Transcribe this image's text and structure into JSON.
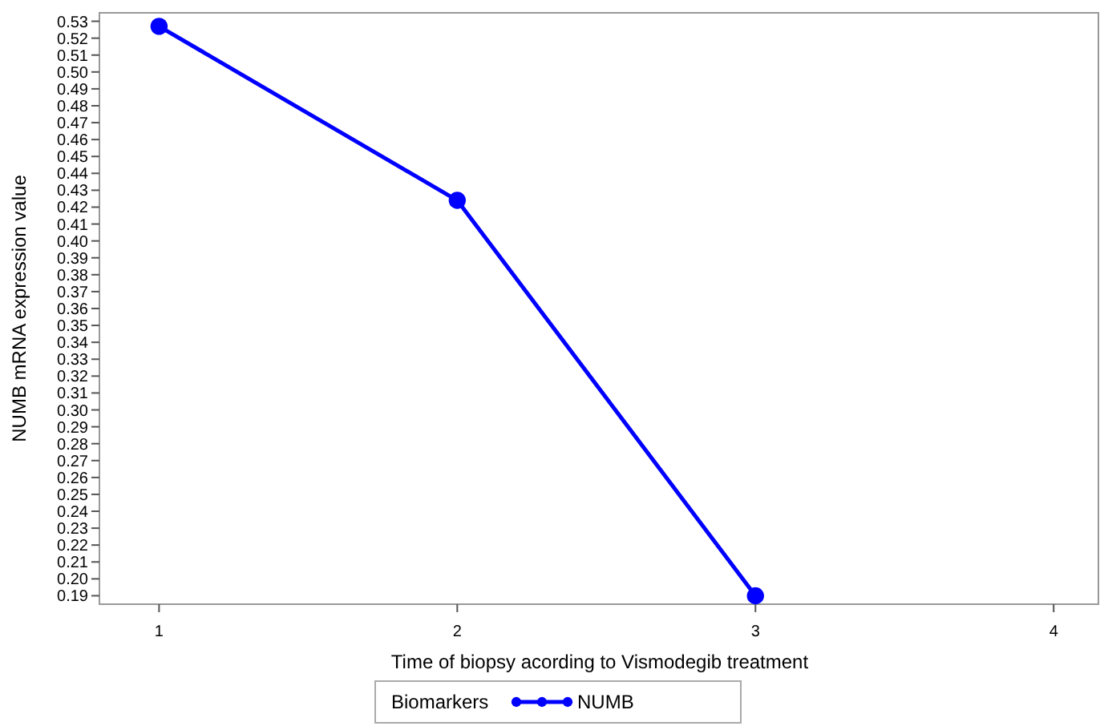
{
  "chart_data": {
    "type": "line",
    "xlabel": "Time of biopsy acording to Vismodegib treatment",
    "ylabel": "NUMB mRNA expression value",
    "legend_title": "Biomarkers",
    "x": [
      1,
      2,
      3
    ],
    "series": [
      {
        "name": "NUMB",
        "color": "#0000ff",
        "values": [
          0.527,
          0.424,
          0.19
        ]
      }
    ],
    "xlim": [
      0.8,
      4.15
    ],
    "xticks": [
      1,
      2,
      3,
      4
    ],
    "ylim": [
      0.185,
      0.535
    ],
    "yticks": [
      0.19,
      {
        "value": 0.2,
        "label": "0.20"
      },
      0.21,
      0.22,
      0.23,
      0.24,
      0.25,
      0.26,
      0.27,
      0.28,
      0.29,
      {
        "value": 0.3,
        "label": "0.30"
      },
      0.31,
      0.32,
      0.33,
      0.34,
      0.35,
      0.36,
      0.37,
      0.38,
      0.39,
      {
        "value": 0.4,
        "label": "0.40"
      },
      0.41,
      0.42,
      0.43,
      0.44,
      0.45,
      0.46,
      0.47,
      0.48,
      0.49,
      {
        "value": 0.5,
        "label": "0.50"
      },
      0.51,
      0.52,
      0.53
    ],
    "marker": "circle",
    "line_style": "solid",
    "legend": "bottom",
    "grid": false
  }
}
